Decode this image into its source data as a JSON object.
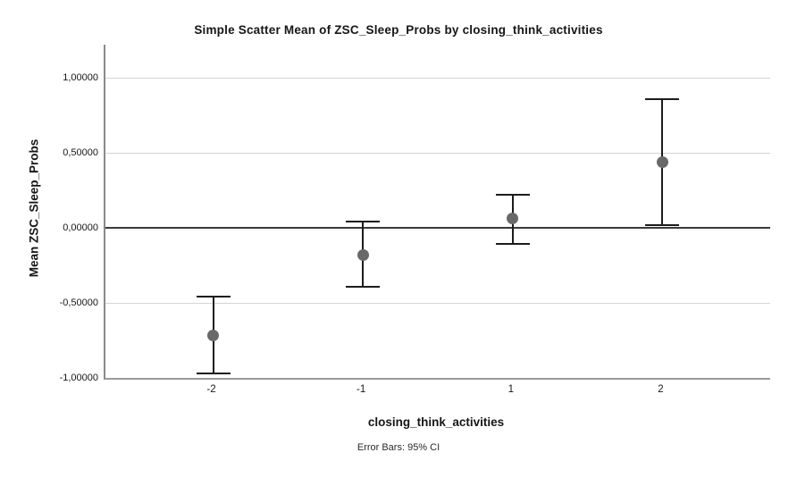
{
  "chart_data": {
    "type": "scatter",
    "title": "Simple Scatter Mean of ZSC_Sleep_Probs by closing_think_activities",
    "xlabel": "closing_think_activities",
    "ylabel": "Mean ZSC_Sleep_Probs",
    "caption": "Error Bars: 95% CI",
    "categories": [
      "-2",
      "-1",
      "1",
      "2"
    ],
    "points": [
      {
        "x": "-2",
        "mean": -0.72,
        "ci_low": -0.97,
        "ci_high": -0.46
      },
      {
        "x": "-1",
        "mean": -0.18,
        "ci_low": -0.39,
        "ci_high": 0.04
      },
      {
        "x": "1",
        "mean": 0.06,
        "ci_low": -0.11,
        "ci_high": 0.22
      },
      {
        "x": "2",
        "mean": 0.44,
        "ci_low": 0.02,
        "ci_high": 0.86
      }
    ],
    "y_ticks": [
      {
        "value": 1.0,
        "label": "1,00000"
      },
      {
        "value": 0.5,
        "label": "0,50000"
      },
      {
        "value": 0.0,
        "label": "0,00000"
      },
      {
        "value": -0.5,
        "label": "-0,50000"
      },
      {
        "value": -1.0,
        "label": "-1,00000"
      }
    ],
    "ylim": [
      -1.0,
      1.22
    ],
    "grid": true,
    "legend": false,
    "zero_reference_line": 0.0,
    "colors": {
      "marker": "#696969",
      "error_bar": "#1c1c1c",
      "zero_line": "#3a3a3a",
      "gridline": "#d4d4d4",
      "axis": "#8a8a8a",
      "text": "#161616",
      "background": "#ffffff"
    }
  }
}
